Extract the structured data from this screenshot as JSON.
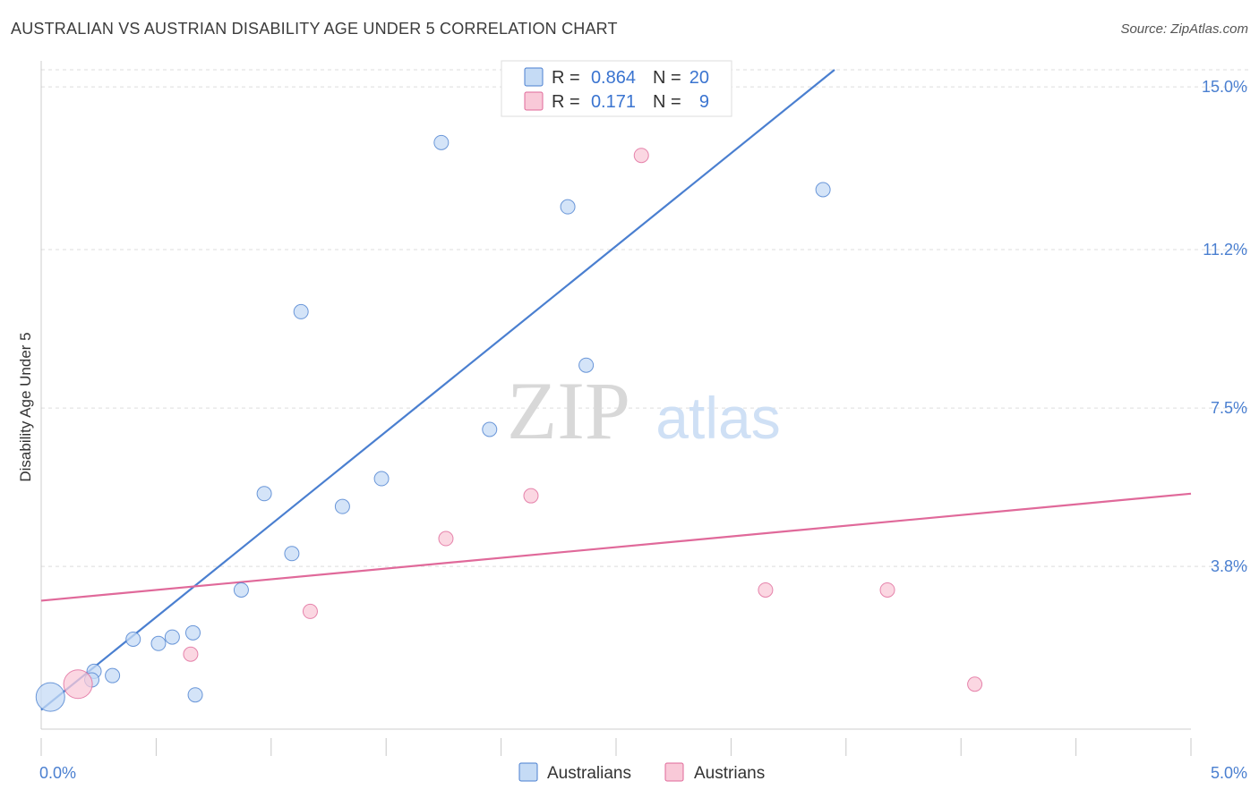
{
  "title": "AUSTRALIAN VS AUSTRIAN DISABILITY AGE UNDER 5 CORRELATION CHART",
  "source": "Source: ZipAtlas.com",
  "watermark": {
    "zip": "ZIP",
    "atlas": "atlas"
  },
  "legend": {
    "rows": [
      {
        "r_label": "R =",
        "r_value": "0.864",
        "n_label": "N =",
        "n_value": "20",
        "color": "#a9c8f0"
      },
      {
        "r_label": "R =",
        "r_value": "0.171",
        "n_label": "N =",
        "n_value": "9",
        "color": "#f7b8cb"
      }
    ]
  },
  "chart_data": {
    "type": "scatter",
    "title": "AUSTRALIAN VS AUSTRIAN DISABILITY AGE UNDER 5 CORRELATION CHART",
    "xlabel": "",
    "ylabel": "Disability Age Under 5",
    "xlim": [
      0,
      5.0
    ],
    "ylim": [
      0,
      15.4
    ],
    "x_tick_labels": [
      "0.0%",
      "5.0%"
    ],
    "y_ticks": [
      3.8,
      7.5,
      11.2,
      15.0
    ],
    "y_tick_labels": [
      "3.8%",
      "7.5%",
      "11.2%",
      "15.0%"
    ],
    "series": [
      {
        "name": "Australians",
        "color": "#4a7fd0",
        "fill": "#c5dbf5",
        "points": [
          {
            "x": 0.04,
            "y": 0.75,
            "size": "large"
          },
          {
            "x": 0.23,
            "y": 1.35
          },
          {
            "x": 0.22,
            "y": 1.15
          },
          {
            "x": 0.31,
            "y": 1.25
          },
          {
            "x": 0.4,
            "y": 2.1
          },
          {
            "x": 0.51,
            "y": 2.0
          },
          {
            "x": 0.57,
            "y": 2.15
          },
          {
            "x": 0.66,
            "y": 2.25
          },
          {
            "x": 0.67,
            "y": 0.8
          },
          {
            "x": 0.87,
            "y": 3.25
          },
          {
            "x": 0.97,
            "y": 5.5
          },
          {
            "x": 1.09,
            "y": 4.1
          },
          {
            "x": 1.13,
            "y": 9.75
          },
          {
            "x": 1.31,
            "y": 5.2
          },
          {
            "x": 1.48,
            "y": 5.85
          },
          {
            "x": 1.74,
            "y": 13.7
          },
          {
            "x": 1.95,
            "y": 7.0
          },
          {
            "x": 2.29,
            "y": 12.2
          },
          {
            "x": 2.37,
            "y": 8.5
          },
          {
            "x": 3.4,
            "y": 12.6
          }
        ],
        "trend": {
          "x0": 0.0,
          "y0": 0.45,
          "x1": 3.45,
          "y1": 15.4
        }
      },
      {
        "name": "Austrians",
        "color": "#e0699a",
        "fill": "#f9c9d8",
        "points": [
          {
            "x": 0.16,
            "y": 1.05,
            "size": "large"
          },
          {
            "x": 0.65,
            "y": 1.75
          },
          {
            "x": 1.17,
            "y": 2.75
          },
          {
            "x": 1.76,
            "y": 4.45
          },
          {
            "x": 2.13,
            "y": 5.45
          },
          {
            "x": 2.61,
            "y": 13.4
          },
          {
            "x": 3.15,
            "y": 3.25
          },
          {
            "x": 3.68,
            "y": 3.25
          },
          {
            "x": 4.06,
            "y": 1.05
          }
        ],
        "trend": {
          "x0": 0.0,
          "y0": 3.0,
          "x1": 5.0,
          "y1": 5.5
        }
      }
    ],
    "legend": [
      "Australians",
      "Austrians"
    ]
  }
}
